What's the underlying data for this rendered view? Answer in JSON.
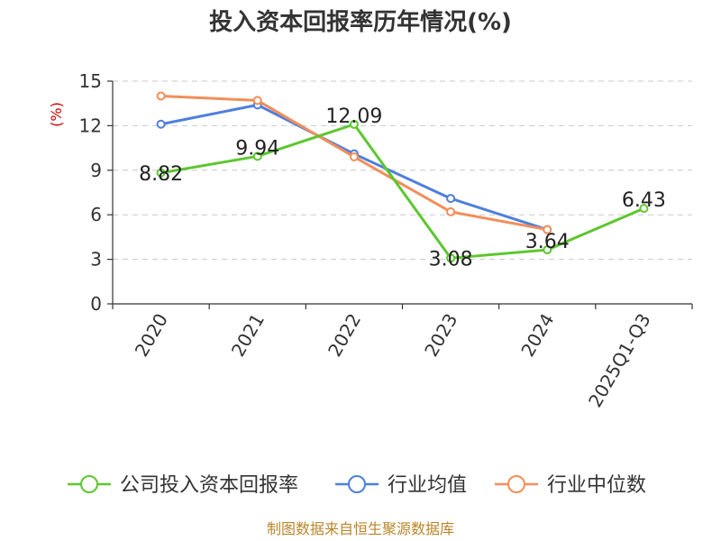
{
  "chart_data": {
    "type": "line",
    "title": "投入资本回报率历年情况(%)",
    "ylabel": "(%)",
    "xlabel": "",
    "categories": [
      "2020",
      "2021",
      "2022",
      "2023",
      "2024",
      "2025Q1-Q3"
    ],
    "ylim": [
      0,
      15
    ],
    "yticks": [
      0,
      3,
      6,
      9,
      12,
      15
    ],
    "grid": "horizontal dashed",
    "legend_position": "bottom",
    "series": [
      {
        "name": "公司投入资本回报率",
        "color": "#5cc72e",
        "values": [
          8.82,
          9.94,
          12.09,
          3.08,
          3.64,
          6.43
        ],
        "labels": [
          "8.82",
          "9.94",
          "12.09",
          "3.08",
          "3.64",
          "6.43"
        ]
      },
      {
        "name": "行业均值",
        "color": "#4e7fdc",
        "values": [
          12.1,
          13.4,
          10.1,
          7.1,
          5.0,
          null
        ]
      },
      {
        "name": "行业中位数",
        "color": "#f28e5a",
        "values": [
          14.0,
          13.7,
          9.9,
          6.2,
          5.0,
          null
        ]
      }
    ]
  },
  "source": "制图数据来自恒生聚源数据库"
}
